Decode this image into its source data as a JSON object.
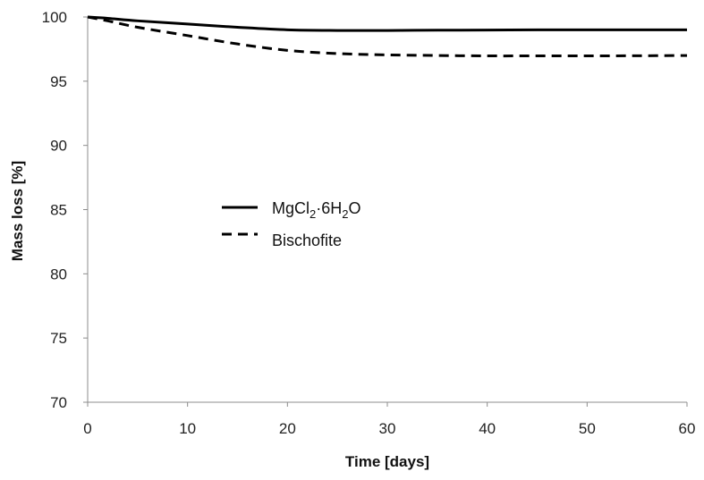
{
  "chart_data": {
    "type": "line",
    "title": "",
    "xlabel": "Time [days]",
    "ylabel": "Mass loss [%]",
    "xlim": [
      0,
      60
    ],
    "ylim": [
      70,
      100
    ],
    "xticks": [
      0,
      10,
      20,
      30,
      40,
      50,
      60
    ],
    "yticks": [
      70,
      75,
      80,
      85,
      90,
      95,
      100
    ],
    "grid": false,
    "legend_position": "center-left",
    "series": [
      {
        "name": "MgCl2·6H2O",
        "legend": {
          "base": "MgCl",
          "sub1": "2",
          "mid": "·6H",
          "sub2": "2",
          "end": "O"
        },
        "line_style": "solid",
        "color": "#000000",
        "x": [
          0,
          2,
          5,
          10,
          15,
          20,
          25,
          30,
          35,
          40,
          45,
          50,
          55,
          60
        ],
        "y": [
          100,
          99.9,
          99.7,
          99.45,
          99.2,
          99.0,
          98.95,
          98.95,
          98.97,
          98.98,
          99.0,
          99.0,
          99.0,
          99.0
        ]
      },
      {
        "name": "Bischofite",
        "legend": {
          "base": "Bischofite"
        },
        "line_style": "dashed",
        "color": "#000000",
        "x": [
          0,
          2,
          5,
          10,
          15,
          20,
          25,
          30,
          35,
          40,
          45,
          50,
          55,
          60
        ],
        "y": [
          100,
          99.7,
          99.2,
          98.55,
          97.9,
          97.4,
          97.15,
          97.05,
          97.0,
          96.97,
          96.97,
          96.97,
          96.98,
          97.0
        ]
      }
    ]
  }
}
